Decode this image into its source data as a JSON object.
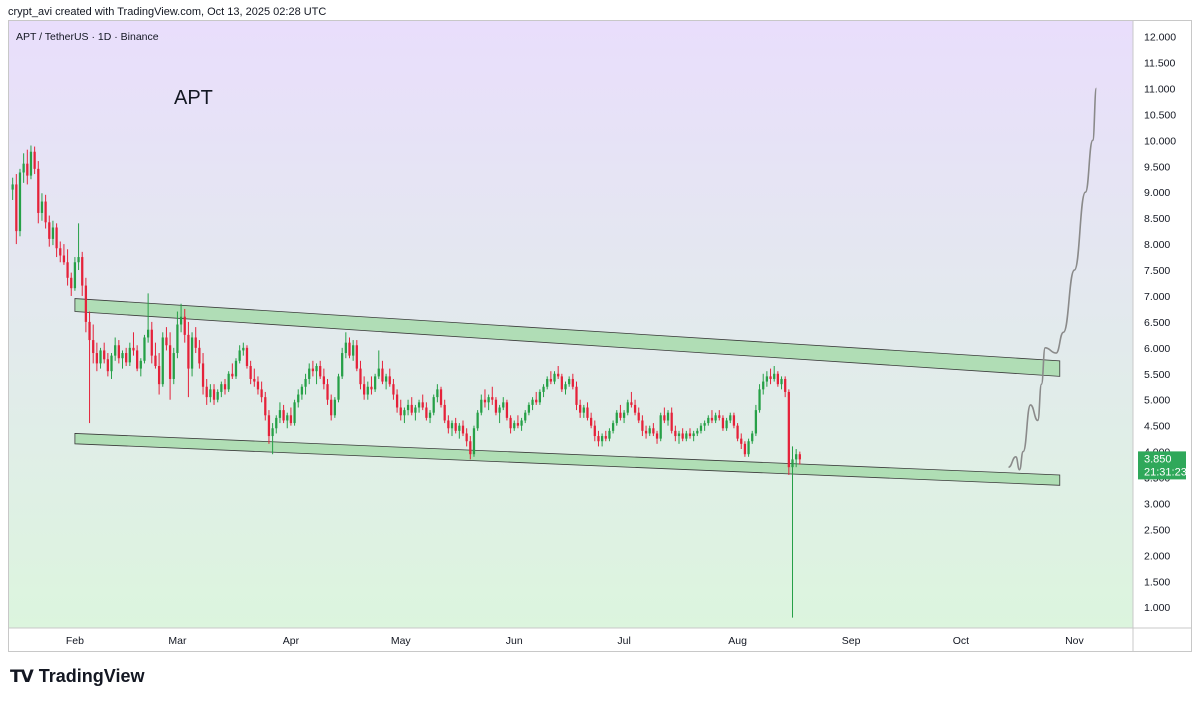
{
  "header": {
    "attribution": "crypt_avi created with TradingView.com, Oct 13, 2025 02:28 UTC"
  },
  "footer": {
    "brand": "TradingView",
    "logo_icon": "tradingview-logo-icon"
  },
  "chart_data": {
    "type": "candlestick",
    "symbol_line": "APT / TetherUS · 1D · Binance",
    "annotation": "APT",
    "ylim": [
      0.6,
      12.3
    ],
    "y_ticks": [
      "1.000",
      "1.500",
      "2.000",
      "2.500",
      "3.000",
      "3.500",
      "4.000",
      "4.500",
      "5.000",
      "5.500",
      "6.000",
      "6.500",
      "7.000",
      "7.500",
      "8.000",
      "8.500",
      "9.000",
      "9.500",
      "10.000",
      "10.500",
      "11.000",
      "11.500",
      "12.000"
    ],
    "x_start": "2025-01-14",
    "x_end": "2025-11-17",
    "x_ticks": [
      {
        "label": "Feb",
        "date": "2025-02-01"
      },
      {
        "label": "Mar",
        "date": "2025-03-01"
      },
      {
        "label": "Apr",
        "date": "2025-04-01"
      },
      {
        "label": "May",
        "date": "2025-05-01"
      },
      {
        "label": "Jun",
        "date": "2025-06-01"
      },
      {
        "label": "Jul",
        "date": "2025-07-01"
      },
      {
        "label": "Aug",
        "date": "2025-08-01"
      },
      {
        "label": "Sep",
        "date": "2025-09-01"
      },
      {
        "label": "Oct",
        "date": "2025-10-01"
      },
      {
        "label": "Nov",
        "date": "2025-11-01"
      }
    ],
    "last_price": {
      "value": 3.85,
      "label": "3.850",
      "countdown": "21:31:23"
    },
    "channel": {
      "upper_band": [
        {
          "date": "2025-02-01",
          "top": 6.95,
          "bottom": 6.7
        },
        {
          "date": "2025-10-28",
          "top": 5.75,
          "bottom": 5.45
        }
      ],
      "lower_band": [
        {
          "date": "2025-02-01",
          "top": 4.35,
          "bottom": 4.15
        },
        {
          "date": "2025-10-28",
          "top": 3.55,
          "bottom": 3.35
        }
      ]
    },
    "projection": [
      {
        "date": "2025-10-14",
        "value": 3.7
      },
      {
        "date": "2025-10-16",
        "value": 3.9
      },
      {
        "date": "2025-10-17",
        "value": 3.65
      },
      {
        "date": "2025-10-18",
        "value": 4.0
      },
      {
        "date": "2025-10-20",
        "value": 4.9
      },
      {
        "date": "2025-10-22",
        "value": 4.6
      },
      {
        "date": "2025-10-23",
        "value": 5.3
      },
      {
        "date": "2025-10-24",
        "value": 6.0
      },
      {
        "date": "2025-10-27",
        "value": 5.9
      },
      {
        "date": "2025-10-29",
        "value": 6.3
      },
      {
        "date": "2025-11-01",
        "value": 7.5
      },
      {
        "date": "2025-11-04",
        "value": 9.0
      },
      {
        "date": "2025-11-06",
        "value": 10.0
      },
      {
        "date": "2025-11-07",
        "value": 11.0
      }
    ],
    "candles_ohlc_daily": [
      [
        9.05,
        9.28,
        8.85,
        9.15
      ],
      [
        9.15,
        9.35,
        8.0,
        8.25
      ],
      [
        8.25,
        9.45,
        8.15,
        9.38
      ],
      [
        9.38,
        9.75,
        9.18,
        9.55
      ],
      [
        9.55,
        9.82,
        9.15,
        9.32
      ],
      [
        9.32,
        9.9,
        9.25,
        9.78
      ],
      [
        9.78,
        9.88,
        9.35,
        9.45
      ],
      [
        9.45,
        9.6,
        8.4,
        8.6
      ],
      [
        8.6,
        8.98,
        8.45,
        8.82
      ],
      [
        8.82,
        8.95,
        8.3,
        8.42
      ],
      [
        8.42,
        8.55,
        7.95,
        8.1
      ],
      [
        8.1,
        8.45,
        7.98,
        8.32
      ],
      [
        8.32,
        8.4,
        7.75,
        7.92
      ],
      [
        7.92,
        8.05,
        7.65,
        7.78
      ],
      [
        7.78,
        8.0,
        7.6,
        7.65
      ],
      [
        7.65,
        7.9,
        7.2,
        7.35
      ],
      [
        7.35,
        7.45,
        7.0,
        7.15
      ],
      [
        7.15,
        7.75,
        7.1,
        7.65
      ],
      [
        7.65,
        8.4,
        7.5,
        7.75
      ],
      [
        7.75,
        7.85,
        7.0,
        7.2
      ],
      [
        7.2,
        7.35,
        6.3,
        6.5
      ],
      [
        6.5,
        6.7,
        4.55,
        6.15
      ],
      [
        6.15,
        6.45,
        5.7,
        5.9
      ],
      [
        5.9,
        6.1,
        5.55,
        5.7
      ],
      [
        5.7,
        6.0,
        5.6,
        5.95
      ],
      [
        5.95,
        6.1,
        5.7,
        5.78
      ],
      [
        5.78,
        5.9,
        5.45,
        5.55
      ],
      [
        5.55,
        5.9,
        5.4,
        5.85
      ],
      [
        5.85,
        6.2,
        5.75,
        6.05
      ],
      [
        6.05,
        6.15,
        5.7,
        5.8
      ],
      [
        5.8,
        5.95,
        5.6,
        5.9
      ],
      [
        5.9,
        6.0,
        5.65,
        5.72
      ],
      [
        5.72,
        6.1,
        5.65,
        6.0
      ],
      [
        6.0,
        6.3,
        5.85,
        5.95
      ],
      [
        5.95,
        6.05,
        5.55,
        5.6
      ],
      [
        5.6,
        5.8,
        5.45,
        5.75
      ],
      [
        5.75,
        6.25,
        5.7,
        6.2
      ],
      [
        6.2,
        7.05,
        6.1,
        6.35
      ],
      [
        6.35,
        6.5,
        5.7,
        5.85
      ],
      [
        5.85,
        6.1,
        5.6,
        5.65
      ],
      [
        5.65,
        5.9,
        5.1,
        5.3
      ],
      [
        5.3,
        6.3,
        5.25,
        6.2
      ],
      [
        6.2,
        6.4,
        5.95,
        6.05
      ],
      [
        6.05,
        6.3,
        5.0,
        5.4
      ],
      [
        5.4,
        6.0,
        5.3,
        5.9
      ],
      [
        5.9,
        6.7,
        5.8,
        6.45
      ],
      [
        6.45,
        6.85,
        6.3,
        6.6
      ],
      [
        6.6,
        6.75,
        6.1,
        6.25
      ],
      [
        6.25,
        6.5,
        5.05,
        5.6
      ],
      [
        5.6,
        6.3,
        5.45,
        6.2
      ],
      [
        6.2,
        6.4,
        5.9,
        6.0
      ],
      [
        6.0,
        6.15,
        5.6,
        5.7
      ],
      [
        5.7,
        5.9,
        5.1,
        5.25
      ],
      [
        5.25,
        5.4,
        4.9,
        5.05
      ],
      [
        5.05,
        5.3,
        4.95,
        5.2
      ],
      [
        5.2,
        5.3,
        4.9,
        5.0
      ],
      [
        5.0,
        5.2,
        4.95,
        5.15
      ],
      [
        5.15,
        5.35,
        5.05,
        5.3
      ],
      [
        5.3,
        5.4,
        5.1,
        5.2
      ],
      [
        5.2,
        5.55,
        5.15,
        5.5
      ],
      [
        5.5,
        5.7,
        5.4,
        5.45
      ],
      [
        5.45,
        5.8,
        5.4,
        5.75
      ],
      [
        5.75,
        6.05,
        5.7,
        5.95
      ],
      [
        5.95,
        6.1,
        5.85,
        6.0
      ],
      [
        6.0,
        6.05,
        5.6,
        5.65
      ],
      [
        5.65,
        5.75,
        5.3,
        5.4
      ],
      [
        5.4,
        5.6,
        5.25,
        5.35
      ],
      [
        5.35,
        5.45,
        5.1,
        5.2
      ],
      [
        5.2,
        5.35,
        4.95,
        5.05
      ],
      [
        5.05,
        5.15,
        4.6,
        4.7
      ],
      [
        4.7,
        4.8,
        4.15,
        4.3
      ],
      [
        4.3,
        4.55,
        3.95,
        4.45
      ],
      [
        4.45,
        4.7,
        4.35,
        4.65
      ],
      [
        4.65,
        4.95,
        4.55,
        4.8
      ],
      [
        4.8,
        4.9,
        4.55,
        4.6
      ],
      [
        4.6,
        4.75,
        4.45,
        4.7
      ],
      [
        4.7,
        4.85,
        4.5,
        4.55
      ],
      [
        4.55,
        5.0,
        4.5,
        4.95
      ],
      [
        4.95,
        5.2,
        4.85,
        5.1
      ],
      [
        5.1,
        5.3,
        5.0,
        5.25
      ],
      [
        5.25,
        5.5,
        5.1,
        5.4
      ],
      [
        5.4,
        5.7,
        5.3,
        5.6
      ],
      [
        5.6,
        5.75,
        5.45,
        5.55
      ],
      [
        5.55,
        5.7,
        5.3,
        5.65
      ],
      [
        5.65,
        5.75,
        5.4,
        5.45
      ],
      [
        5.45,
        5.6,
        5.2,
        5.3
      ],
      [
        5.3,
        5.4,
        4.9,
        5.0
      ],
      [
        5.0,
        5.1,
        4.6,
        4.7
      ],
      [
        4.7,
        5.05,
        4.65,
        5.0
      ],
      [
        5.0,
        5.5,
        4.95,
        5.45
      ],
      [
        5.45,
        6.0,
        5.4,
        5.9
      ],
      [
        5.9,
        6.3,
        5.8,
        6.1
      ],
      [
        6.1,
        6.2,
        5.8,
        5.85
      ],
      [
        5.85,
        6.15,
        5.75,
        6.05
      ],
      [
        6.05,
        6.15,
        5.55,
        5.6
      ],
      [
        5.6,
        5.75,
        5.2,
        5.3
      ],
      [
        5.3,
        5.45,
        5.0,
        5.1
      ],
      [
        5.1,
        5.35,
        5.0,
        5.25
      ],
      [
        5.25,
        5.45,
        5.1,
        5.2
      ],
      [
        5.2,
        5.5,
        5.15,
        5.45
      ],
      [
        5.45,
        5.95,
        5.4,
        5.6
      ],
      [
        5.6,
        5.75,
        5.3,
        5.35
      ],
      [
        5.35,
        5.5,
        5.2,
        5.45
      ],
      [
        5.45,
        5.6,
        5.25,
        5.3
      ],
      [
        5.3,
        5.4,
        5.0,
        5.1
      ],
      [
        5.1,
        5.2,
        4.75,
        4.85
      ],
      [
        4.85,
        5.0,
        4.6,
        4.7
      ],
      [
        4.7,
        4.85,
        4.55,
        4.8
      ],
      [
        4.8,
        5.0,
        4.7,
        4.9
      ],
      [
        4.9,
        5.05,
        4.7,
        4.75
      ],
      [
        4.75,
        4.9,
        4.6,
        4.85
      ],
      [
        4.85,
        5.0,
        4.75,
        4.95
      ],
      [
        4.95,
        5.1,
        4.8,
        4.85
      ],
      [
        4.85,
        4.95,
        4.6,
        4.65
      ],
      [
        4.65,
        4.8,
        4.55,
        4.75
      ],
      [
        4.75,
        5.1,
        4.7,
        5.05
      ],
      [
        5.05,
        5.3,
        4.95,
        5.2
      ],
      [
        5.2,
        5.25,
        4.85,
        4.9
      ],
      [
        4.9,
        5.0,
        4.55,
        4.6
      ],
      [
        4.6,
        4.7,
        4.35,
        4.45
      ],
      [
        4.45,
        4.6,
        4.3,
        4.55
      ],
      [
        4.55,
        4.65,
        4.35,
        4.4
      ],
      [
        4.4,
        4.55,
        4.25,
        4.5
      ],
      [
        4.5,
        4.6,
        4.3,
        4.35
      ],
      [
        4.35,
        4.45,
        4.1,
        4.2
      ],
      [
        4.2,
        4.3,
        3.85,
        3.95
      ],
      [
        3.95,
        4.5,
        3.9,
        4.45
      ],
      [
        4.45,
        4.8,
        4.4,
        4.75
      ],
      [
        4.75,
        5.1,
        4.7,
        5.0
      ],
      [
        5.0,
        5.2,
        4.85,
        4.95
      ],
      [
        4.95,
        5.1,
        4.8,
        5.05
      ],
      [
        5.05,
        5.25,
        4.9,
        5.0
      ],
      [
        5.0,
        5.05,
        4.7,
        4.75
      ],
      [
        4.75,
        4.9,
        4.55,
        4.85
      ],
      [
        4.85,
        5.05,
        4.8,
        4.95
      ],
      [
        4.95,
        5.0,
        4.6,
        4.65
      ],
      [
        4.65,
        4.7,
        4.35,
        4.45
      ],
      [
        4.45,
        4.6,
        4.4,
        4.55
      ],
      [
        4.55,
        4.7,
        4.45,
        4.5
      ],
      [
        4.5,
        4.65,
        4.4,
        4.6
      ],
      [
        4.6,
        4.8,
        4.55,
        4.75
      ],
      [
        4.75,
        4.95,
        4.7,
        4.9
      ],
      [
        4.9,
        5.05,
        4.8,
        5.0
      ],
      [
        5.0,
        5.15,
        4.9,
        4.95
      ],
      [
        4.95,
        5.2,
        4.9,
        5.15
      ],
      [
        5.15,
        5.3,
        5.05,
        5.25
      ],
      [
        5.25,
        5.45,
        5.2,
        5.4
      ],
      [
        5.4,
        5.55,
        5.3,
        5.35
      ],
      [
        5.35,
        5.55,
        5.3,
        5.5
      ],
      [
        5.5,
        5.65,
        5.4,
        5.45
      ],
      [
        5.45,
        5.5,
        5.15,
        5.2
      ],
      [
        5.2,
        5.35,
        5.1,
        5.3
      ],
      [
        5.3,
        5.45,
        5.25,
        5.4
      ],
      [
        5.4,
        5.5,
        5.2,
        5.25
      ],
      [
        5.25,
        5.35,
        4.8,
        4.9
      ],
      [
        4.9,
        5.0,
        4.65,
        4.75
      ],
      [
        4.75,
        4.9,
        4.65,
        4.85
      ],
      [
        4.85,
        4.95,
        4.6,
        4.65
      ],
      [
        4.65,
        4.75,
        4.45,
        4.5
      ],
      [
        4.5,
        4.6,
        4.2,
        4.3
      ],
      [
        4.3,
        4.4,
        4.1,
        4.2
      ],
      [
        4.2,
        4.35,
        4.1,
        4.3
      ],
      [
        4.3,
        4.4,
        4.2,
        4.25
      ],
      [
        4.25,
        4.45,
        4.2,
        4.4
      ],
      [
        4.4,
        4.6,
        4.35,
        4.55
      ],
      [
        4.55,
        4.8,
        4.5,
        4.75
      ],
      [
        4.75,
        4.9,
        4.6,
        4.65
      ],
      [
        4.65,
        4.8,
        4.55,
        4.75
      ],
      [
        4.75,
        5.0,
        4.7,
        4.95
      ],
      [
        4.95,
        5.15,
        4.85,
        4.9
      ],
      [
        4.9,
        5.0,
        4.7,
        4.75
      ],
      [
        4.75,
        4.85,
        4.55,
        4.6
      ],
      [
        4.6,
        4.7,
        4.3,
        4.4
      ],
      [
        4.4,
        4.5,
        4.25,
        4.35
      ],
      [
        4.35,
        4.5,
        4.3,
        4.45
      ],
      [
        4.45,
        4.55,
        4.3,
        4.35
      ],
      [
        4.35,
        4.4,
        4.15,
        4.25
      ],
      [
        4.25,
        4.75,
        4.2,
        4.7
      ],
      [
        4.7,
        4.85,
        4.55,
        4.6
      ],
      [
        4.6,
        4.8,
        4.5,
        4.75
      ],
      [
        4.75,
        4.85,
        4.35,
        4.4
      ],
      [
        4.4,
        4.5,
        4.2,
        4.3
      ],
      [
        4.3,
        4.4,
        4.15,
        4.35
      ],
      [
        4.35,
        4.45,
        4.2,
        4.25
      ],
      [
        4.25,
        4.4,
        4.2,
        4.35
      ],
      [
        4.35,
        4.45,
        4.25,
        4.3
      ],
      [
        4.3,
        4.4,
        4.2,
        4.35
      ],
      [
        4.35,
        4.45,
        4.3,
        4.4
      ],
      [
        4.4,
        4.55,
        4.35,
        4.5
      ],
      [
        4.5,
        4.6,
        4.4,
        4.55
      ],
      [
        4.55,
        4.7,
        4.5,
        4.65
      ],
      [
        4.65,
        4.8,
        4.55,
        4.6
      ],
      [
        4.6,
        4.75,
        4.55,
        4.7
      ],
      [
        4.7,
        4.8,
        4.6,
        4.65
      ],
      [
        4.65,
        4.7,
        4.4,
        4.45
      ],
      [
        4.45,
        4.65,
        4.4,
        4.6
      ],
      [
        4.6,
        4.75,
        4.55,
        4.7
      ],
      [
        4.7,
        4.75,
        4.45,
        4.5
      ],
      [
        4.5,
        4.55,
        4.2,
        4.25
      ],
      [
        4.25,
        4.35,
        4.05,
        4.15
      ],
      [
        4.15,
        4.2,
        3.9,
        3.95
      ],
      [
        3.95,
        4.25,
        3.9,
        4.2
      ],
      [
        4.2,
        4.4,
        4.15,
        4.35
      ],
      [
        4.35,
        4.9,
        4.3,
        4.8
      ],
      [
        4.8,
        5.3,
        4.75,
        5.2
      ],
      [
        5.2,
        5.5,
        5.1,
        5.35
      ],
      [
        5.35,
        5.55,
        5.25,
        5.45
      ],
      [
        5.45,
        5.6,
        5.3,
        5.4
      ],
      [
        5.4,
        5.65,
        5.35,
        5.5
      ],
      [
        5.5,
        5.55,
        5.25,
        5.3
      ],
      [
        5.3,
        5.45,
        5.2,
        5.4
      ],
      [
        5.4,
        5.45,
        5.05,
        5.15
      ],
      [
        5.15,
        5.2,
        3.55,
        3.7
      ],
      [
        3.7,
        4.1,
        0.8,
        3.85
      ],
      [
        3.85,
        4.05,
        3.7,
        3.95
      ],
      [
        3.95,
        4.0,
        3.75,
        3.85
      ]
    ]
  }
}
